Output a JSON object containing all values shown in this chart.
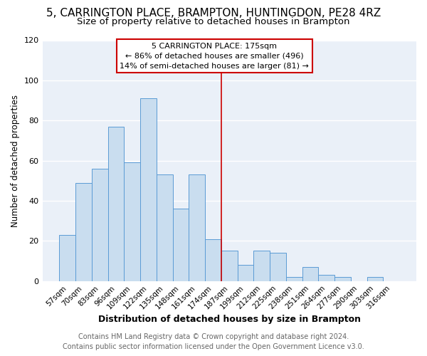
{
  "title": "5, CARRINGTON PLACE, BRAMPTON, HUNTINGDON, PE28 4RZ",
  "subtitle": "Size of property relative to detached houses in Brampton",
  "xlabel": "Distribution of detached houses by size in Brampton",
  "ylabel": "Number of detached properties",
  "footer_line1": "Contains HM Land Registry data © Crown copyright and database right 2024.",
  "footer_line2": "Contains public sector information licensed under the Open Government Licence v3.0.",
  "categories": [
    "57sqm",
    "70sqm",
    "83sqm",
    "96sqm",
    "109sqm",
    "122sqm",
    "135sqm",
    "148sqm",
    "161sqm",
    "174sqm",
    "187sqm",
    "199sqm",
    "212sqm",
    "225sqm",
    "238sqm",
    "251sqm",
    "264sqm",
    "277sqm",
    "290sqm",
    "303sqm",
    "316sqm"
  ],
  "values": [
    23,
    49,
    56,
    77,
    59,
    91,
    53,
    36,
    53,
    21,
    15,
    8,
    15,
    14,
    2,
    7,
    3,
    2,
    0,
    2,
    0
  ],
  "bar_color": "#c9ddef",
  "bar_edge_color": "#5b9bd5",
  "annotation_title": "5 CARRINGTON PLACE: 175sqm",
  "annotation_line1": "← 86% of detached houses are smaller (496)",
  "annotation_line2": "14% of semi-detached houses are larger (81) →",
  "annotation_box_edge": "#cc0000",
  "vline_color": "#cc0000",
  "ylim": [
    0,
    120
  ],
  "yticks": [
    0,
    20,
    40,
    60,
    80,
    100,
    120
  ],
  "background_color": "#ffffff",
  "plot_background": "#eaf0f8",
  "grid_color": "#ffffff",
  "title_fontsize": 11,
  "subtitle_fontsize": 9.5,
  "footer_fontsize": 7,
  "xlabel_fontsize": 9,
  "ylabel_fontsize": 8.5
}
